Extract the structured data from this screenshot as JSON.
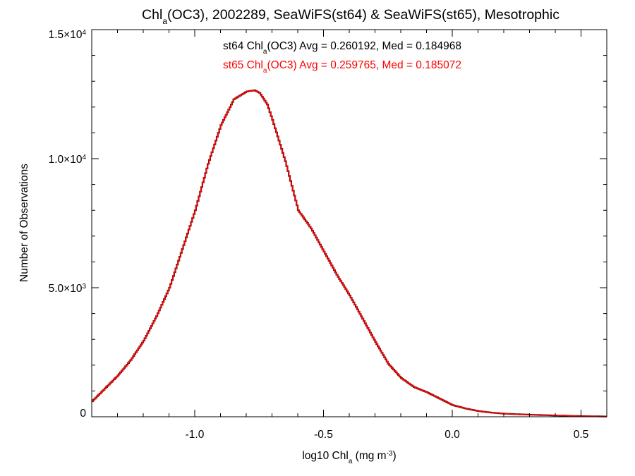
{
  "chart_data": {
    "type": "line",
    "title": {
      "pre": "Chl",
      "sub": "a",
      "post": "(OC3), 2002289, SeaWiFS(st64) & SeaWiFS(st65), Mesotrophic"
    },
    "xlabel": {
      "pre": "log10 Chl",
      "sub": "a",
      "mid": " (mg m",
      "sup": "-3",
      "post": ")"
    },
    "ylabel": "Number of Observations",
    "xlim": [
      -1.4,
      0.6
    ],
    "ylim": [
      0,
      15000
    ],
    "x_ticks": [
      {
        "value": -1.0,
        "label": "-1.0"
      },
      {
        "value": -0.5,
        "label": "-0.5"
      },
      {
        "value": 0.0,
        "label": "0.0"
      },
      {
        "value": 0.5,
        "label": "0.5"
      }
    ],
    "y_ticks": [
      {
        "value": 0,
        "label": "0",
        "exp": ""
      },
      {
        "value": 5000,
        "label": "5.0×10",
        "exp": "3"
      },
      {
        "value": 10000,
        "label": "1.0×10",
        "exp": "4"
      },
      {
        "value": 15000,
        "label": "1.5×10",
        "exp": "4"
      }
    ],
    "annotations": [
      {
        "pre": "st64 Chl",
        "sub": "a",
        "post": "(OC3) Avg = 0.260192, Med = 0.184968",
        "color": "#000000"
      },
      {
        "pre": "st65 Chl",
        "sub": "a",
        "post": "(OC3) Avg = 0.259765, Med = 0.185072",
        "color": "#ff0000"
      }
    ],
    "series": [
      {
        "color": "#000000",
        "x": [
          -1.4,
          -1.35,
          -1.3,
          -1.25,
          -1.2,
          -1.15,
          -1.1,
          -1.05,
          -1.0,
          -0.95,
          -0.9,
          -0.85,
          -0.8,
          -0.77,
          -0.75,
          -0.72,
          -0.7,
          -0.65,
          -0.6,
          -0.55,
          -0.5,
          -0.45,
          -0.4,
          -0.35,
          -0.3,
          -0.25,
          -0.2,
          -0.15,
          -0.1,
          -0.05,
          0.0,
          0.05,
          0.1,
          0.15,
          0.2,
          0.3,
          0.4,
          0.5,
          0.6
        ],
        "y": [
          600,
          1100,
          1600,
          2200,
          2950,
          3900,
          5000,
          6500,
          8000,
          9800,
          11300,
          12300,
          12600,
          12650,
          12550,
          12100,
          11500,
          9900,
          8000,
          7300,
          6400,
          5500,
          4700,
          3800,
          2900,
          2050,
          1500,
          1150,
          950,
          700,
          450,
          320,
          220,
          160,
          120,
          80,
          50,
          25,
          10
        ]
      },
      {
        "color": "#ff0000",
        "x": [
          -1.4,
          -1.35,
          -1.3,
          -1.25,
          -1.2,
          -1.15,
          -1.1,
          -1.05,
          -1.0,
          -0.95,
          -0.9,
          -0.85,
          -0.8,
          -0.77,
          -0.75,
          -0.72,
          -0.7,
          -0.65,
          -0.6,
          -0.55,
          -0.5,
          -0.45,
          -0.4,
          -0.35,
          -0.3,
          -0.25,
          -0.2,
          -0.15,
          -0.1,
          -0.05,
          0.0,
          0.05,
          0.1,
          0.15,
          0.2,
          0.3,
          0.4,
          0.5,
          0.6
        ],
        "y": [
          600,
          1100,
          1600,
          2200,
          2950,
          3900,
          5000,
          6500,
          8000,
          9800,
          11300,
          12300,
          12600,
          12650,
          12550,
          12100,
          11500,
          9900,
          8000,
          7300,
          6400,
          5500,
          4700,
          3800,
          2900,
          2050,
          1500,
          1150,
          950,
          700,
          450,
          320,
          220,
          160,
          120,
          80,
          50,
          25,
          10
        ]
      }
    ]
  }
}
